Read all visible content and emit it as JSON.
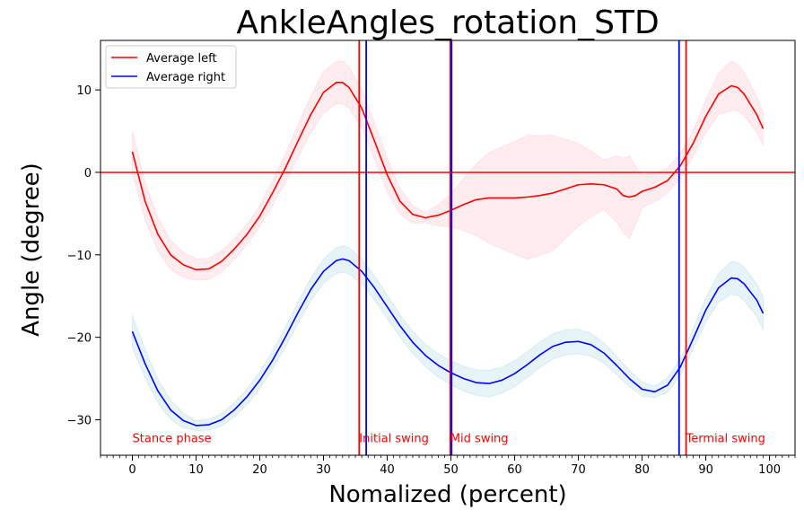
{
  "chart_data": {
    "type": "line",
    "title": "AnkleAngles_rotation_STD",
    "xlabel": "Nomalized (percent)",
    "ylabel": "Angle (degree)",
    "xlim": [
      -5,
      104
    ],
    "ylim": [
      -34.3,
      16
    ],
    "x_ticks": [
      0,
      10,
      20,
      30,
      40,
      50,
      60,
      70,
      80,
      90,
      100
    ],
    "y_ticks": [
      -30,
      -20,
      -10,
      0,
      10
    ],
    "x_minor_step": 1,
    "grid": false,
    "legend": {
      "position": "top-left",
      "entries": [
        {
          "label": "Average left",
          "color": "#ff0000"
        },
        {
          "label": "Average right",
          "color": "#0000ff"
        }
      ]
    },
    "series": [
      {
        "name": "Average left",
        "color": "#ff0000",
        "band_color": "#ffc0cb",
        "points": [
          [
            0,
            2.5
          ],
          [
            2,
            -3.5
          ],
          [
            4,
            -7.5
          ],
          [
            6,
            -10
          ],
          [
            8,
            -11.2
          ],
          [
            10,
            -11.8
          ],
          [
            12,
            -11.7
          ],
          [
            14,
            -10.8
          ],
          [
            16,
            -9.3
          ],
          [
            18,
            -7.5
          ],
          [
            20,
            -5.3
          ],
          [
            22,
            -2.5
          ],
          [
            24,
            0.5
          ],
          [
            26,
            3.8
          ],
          [
            28,
            7
          ],
          [
            30,
            9.7
          ],
          [
            32,
            10.9
          ],
          [
            33,
            10.9
          ],
          [
            34,
            10.3
          ],
          [
            36,
            7.8
          ],
          [
            38,
            3.8
          ],
          [
            40,
            -0.3
          ],
          [
            42,
            -3.5
          ],
          [
            44,
            -5.1
          ],
          [
            46,
            -5.5
          ],
          [
            48,
            -5.2
          ],
          [
            50,
            -4.6
          ],
          [
            52,
            -3.9
          ],
          [
            54,
            -3.3
          ],
          [
            56,
            -3.1
          ],
          [
            58,
            -3.1
          ],
          [
            60,
            -3.1
          ],
          [
            62,
            -3
          ],
          [
            64,
            -2.8
          ],
          [
            66,
            -2.5
          ],
          [
            68,
            -2
          ],
          [
            70,
            -1.5
          ],
          [
            72,
            -1.4
          ],
          [
            74,
            -1.5
          ],
          [
            76,
            -2
          ],
          [
            77,
            -2.8
          ],
          [
            78,
            -3
          ],
          [
            79,
            -2.8
          ],
          [
            80,
            -2.3
          ],
          [
            82,
            -1.8
          ],
          [
            84,
            -1
          ],
          [
            86,
            0.8
          ],
          [
            88,
            3.5
          ],
          [
            90,
            6.8
          ],
          [
            92,
            9.5
          ],
          [
            94,
            10.5
          ],
          [
            95,
            10.3
          ],
          [
            96,
            9.5
          ],
          [
            98,
            7
          ],
          [
            99,
            5.3
          ]
        ],
        "std": [
          [
            0,
            2.5
          ],
          [
            10,
            1.3
          ],
          [
            20,
            1.2
          ],
          [
            30,
            2.5
          ],
          [
            33,
            2.6
          ],
          [
            40,
            2
          ],
          [
            46,
            0.6
          ],
          [
            50,
            2
          ],
          [
            56,
            5.5
          ],
          [
            62,
            7.5
          ],
          [
            66,
            7
          ],
          [
            70,
            5
          ],
          [
            74,
            3
          ],
          [
            78,
            5
          ],
          [
            80,
            2
          ],
          [
            84,
            1.5
          ],
          [
            88,
            1.5
          ],
          [
            94,
            3
          ],
          [
            99,
            2
          ]
        ]
      },
      {
        "name": "Average right",
        "color": "#0000ff",
        "band_color": "#add8e6",
        "points": [
          [
            0,
            -19.3
          ],
          [
            2,
            -23.2
          ],
          [
            4,
            -26.5
          ],
          [
            6,
            -28.8
          ],
          [
            8,
            -30.1
          ],
          [
            10,
            -30.7
          ],
          [
            12,
            -30.6
          ],
          [
            14,
            -30
          ],
          [
            16,
            -28.8
          ],
          [
            18,
            -27.2
          ],
          [
            20,
            -25.2
          ],
          [
            22,
            -22.8
          ],
          [
            24,
            -20
          ],
          [
            26,
            -17
          ],
          [
            28,
            -14.2
          ],
          [
            30,
            -12
          ],
          [
            32,
            -10.7
          ],
          [
            33,
            -10.5
          ],
          [
            34,
            -10.7
          ],
          [
            36,
            -12
          ],
          [
            38,
            -14
          ],
          [
            40,
            -16.3
          ],
          [
            42,
            -18.6
          ],
          [
            44,
            -20.6
          ],
          [
            46,
            -22.2
          ],
          [
            48,
            -23.4
          ],
          [
            50,
            -24.3
          ],
          [
            52,
            -25
          ],
          [
            54,
            -25.5
          ],
          [
            56,
            -25.6
          ],
          [
            58,
            -25.2
          ],
          [
            60,
            -24.4
          ],
          [
            62,
            -23.3
          ],
          [
            64,
            -22.1
          ],
          [
            66,
            -21.1
          ],
          [
            68,
            -20.6
          ],
          [
            70,
            -20.5
          ],
          [
            72,
            -20.9
          ],
          [
            74,
            -21.9
          ],
          [
            76,
            -23.4
          ],
          [
            78,
            -25
          ],
          [
            80,
            -26.3
          ],
          [
            82,
            -26.6
          ],
          [
            84,
            -25.8
          ],
          [
            86,
            -23.6
          ],
          [
            88,
            -20.2
          ],
          [
            90,
            -16.7
          ],
          [
            92,
            -14
          ],
          [
            94,
            -12.8
          ],
          [
            95,
            -12.9
          ],
          [
            96,
            -13.5
          ],
          [
            98,
            -15.5
          ],
          [
            99,
            -17.1
          ]
        ],
        "std": [
          [
            0,
            2
          ],
          [
            10,
            0.6
          ],
          [
            20,
            1
          ],
          [
            33,
            1.6
          ],
          [
            44,
            1.3
          ],
          [
            56,
            1.6
          ],
          [
            70,
            1.5
          ],
          [
            82,
            0.7
          ],
          [
            88,
            1.2
          ],
          [
            94,
            2
          ],
          [
            99,
            2
          ]
        ]
      }
    ],
    "horizontal_lines": [
      {
        "y": 0,
        "color": "#ff0000"
      }
    ],
    "vertical_lines": [
      {
        "x": 35.6,
        "color": "#ff0000"
      },
      {
        "x": 36.7,
        "color": "#0000ff"
      },
      {
        "x": 49.9,
        "color": "#ff0000"
      },
      {
        "x": 50.1,
        "color": "#0000ff"
      },
      {
        "x": 85.8,
        "color": "#0000ff"
      },
      {
        "x": 86.9,
        "color": "#ff0000"
      }
    ],
    "annotations": [
      {
        "text": "Stance phase",
        "x": 0,
        "y": -32.3,
        "color": "#ff0000"
      },
      {
        "text": "Initial swing",
        "x": 35.6,
        "y": -32.3,
        "color": "#ff0000"
      },
      {
        "text": "Mid swing",
        "x": 49.9,
        "y": -32.3,
        "color": "#ff0000"
      },
      {
        "text": "Termial swing",
        "x": 86.9,
        "y": -32.3,
        "color": "#ff0000"
      }
    ]
  }
}
